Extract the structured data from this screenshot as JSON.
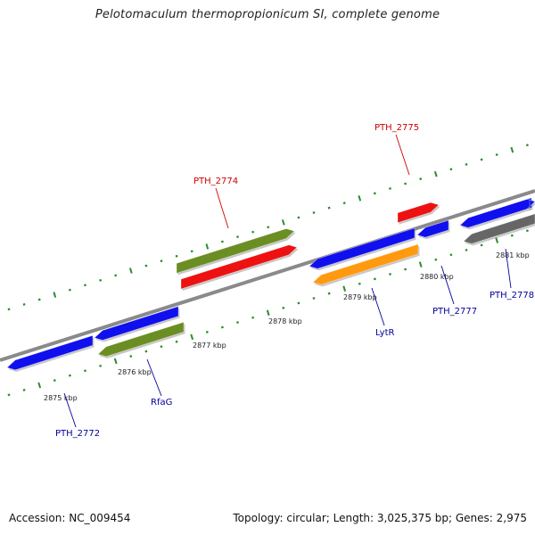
{
  "title": "Pelotomaculum thermopropionicum SI, complete genome",
  "footer": {
    "accession": "Accession: NC_009454",
    "summary": "Topology: circular; Length: 3,025,375 bp; Genes: 2,975"
  },
  "colors": {
    "backbone": "#8a8a8a",
    "tick": "#2e8b2e",
    "forward_label": "#cc0000",
    "reverse_label": "#000099",
    "blue": "#1010ee",
    "green": "#6b8e23",
    "red": "#ee1111",
    "orange": "#ff9a10",
    "gray": "#666666"
  },
  "axis": {
    "ticks": [
      "2875 kbp",
      "2876 kbp",
      "2877 kbp",
      "2878 kbp",
      "2879 kbp",
      "2880 kbp",
      "2881 kbp"
    ]
  },
  "genes": [
    {
      "name": "PTH_2772",
      "color": "blue",
      "strand": "reverse"
    },
    {
      "name": "",
      "color": "blue",
      "strand": "reverse"
    },
    {
      "name": "RfaG",
      "color": "green",
      "strand": "reverse"
    },
    {
      "name": "PTH_2774",
      "color": "green",
      "strand": "forward"
    },
    {
      "name": "",
      "color": "red",
      "strand": "forward"
    },
    {
      "name": "LytR",
      "color": "blue",
      "strand": "reverse"
    },
    {
      "name": "",
      "color": "orange",
      "strand": "reverse"
    },
    {
      "name": "PTH_2775",
      "color": "red",
      "strand": "forward"
    },
    {
      "name": "PTH_2777",
      "color": "blue",
      "strand": "reverse"
    },
    {
      "name": "PTH_2778",
      "color": "blue",
      "strand": "reverse"
    },
    {
      "name": "",
      "color": "gray",
      "strand": "reverse"
    },
    {
      "name": "",
      "color": "blue",
      "strand": "forward"
    }
  ],
  "labels": [
    {
      "text": "PTH_2772",
      "strand": "reverse"
    },
    {
      "text": "RfaG",
      "strand": "reverse"
    },
    {
      "text": "PTH_2774",
      "strand": "forward"
    },
    {
      "text": "LytR",
      "strand": "reverse"
    },
    {
      "text": "PTH_2775",
      "strand": "forward"
    },
    {
      "text": "PTH_2777",
      "strand": "reverse"
    },
    {
      "text": "PTH_2778",
      "strand": "reverse"
    }
  ]
}
